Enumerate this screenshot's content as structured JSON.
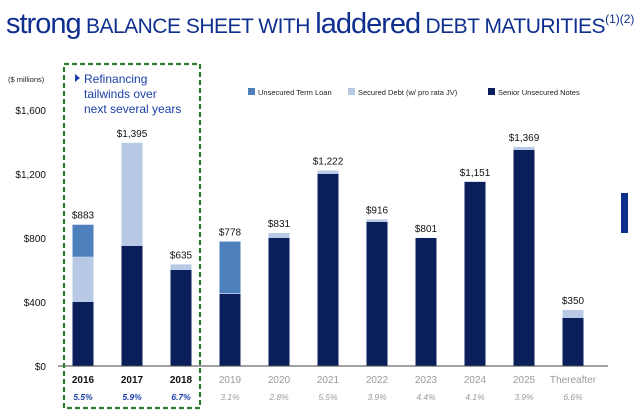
{
  "title": {
    "part1": "strong",
    "part2": " BALANCE SHEET WITH ",
    "part3": "laddered",
    "part4": " DEBT MATURITIES",
    "superscript": "(1)(2)"
  },
  "callout": {
    "lines": [
      "Refinancing",
      "tailwinds over",
      "next several years"
    ]
  },
  "colors": {
    "title": "#0f2f8f",
    "senior_unsecured": "#0a1f5c",
    "secured": "#b7c9e4",
    "term_loan": "#4e7fbd",
    "highlight_box": "#2e7d32",
    "rate_highlight": "#1b3fa8",
    "rate_muted": "#9a9a9a"
  },
  "chart_data": {
    "type": "bar",
    "stacked": true,
    "y_unit_label": "($ millions)",
    "categories": [
      "2016",
      "2017",
      "2018",
      "2019",
      "2020",
      "2021",
      "2022",
      "2023",
      "2024",
      "2025",
      "Thereafter"
    ],
    "series": [
      {
        "name": "Senior Unsecured Notes",
        "values": [
          400,
          750,
          600,
          450,
          800,
          1200,
          900,
          800,
          1151,
          1350,
          300
        ]
      },
      {
        "name": "Secured Debt (w/ pro rata JV)",
        "values": [
          283,
          645,
          35,
          5,
          31,
          22,
          16,
          1,
          0,
          19,
          50
        ]
      },
      {
        "name": "Unsecured Term Loan",
        "values": [
          200,
          0,
          0,
          323,
          0,
          0,
          0,
          0,
          0,
          0,
          0
        ]
      }
    ],
    "legend_order": [
      "Unsecured Term Loan",
      "Secured Debt (w/ pro rata JV)",
      "Senior Unsecured Notes"
    ],
    "legend_placement": "top-right",
    "totals": [
      "$883",
      "$1,395",
      "$635",
      "$778",
      "$831",
      "$1,222",
      "$916",
      "$801",
      "$1,151",
      "$1,369",
      "$350"
    ],
    "rates": [
      "5.5%",
      "5.9%",
      "6.7%",
      "3.1%",
      "2.8%",
      "5.5%",
      "3.9%",
      "4.4%",
      "4.1%",
      "3.9%",
      "6.6%"
    ],
    "highlighted_categories": [
      "2016",
      "2017",
      "2018"
    ],
    "yticks": [
      0,
      400,
      800,
      1200,
      1600
    ],
    "ytick_labels": [
      "$0",
      "$400",
      "$800",
      "$1,200",
      "$1,600"
    ],
    "ylim": [
      0,
      1700
    ],
    "grid": false
  }
}
